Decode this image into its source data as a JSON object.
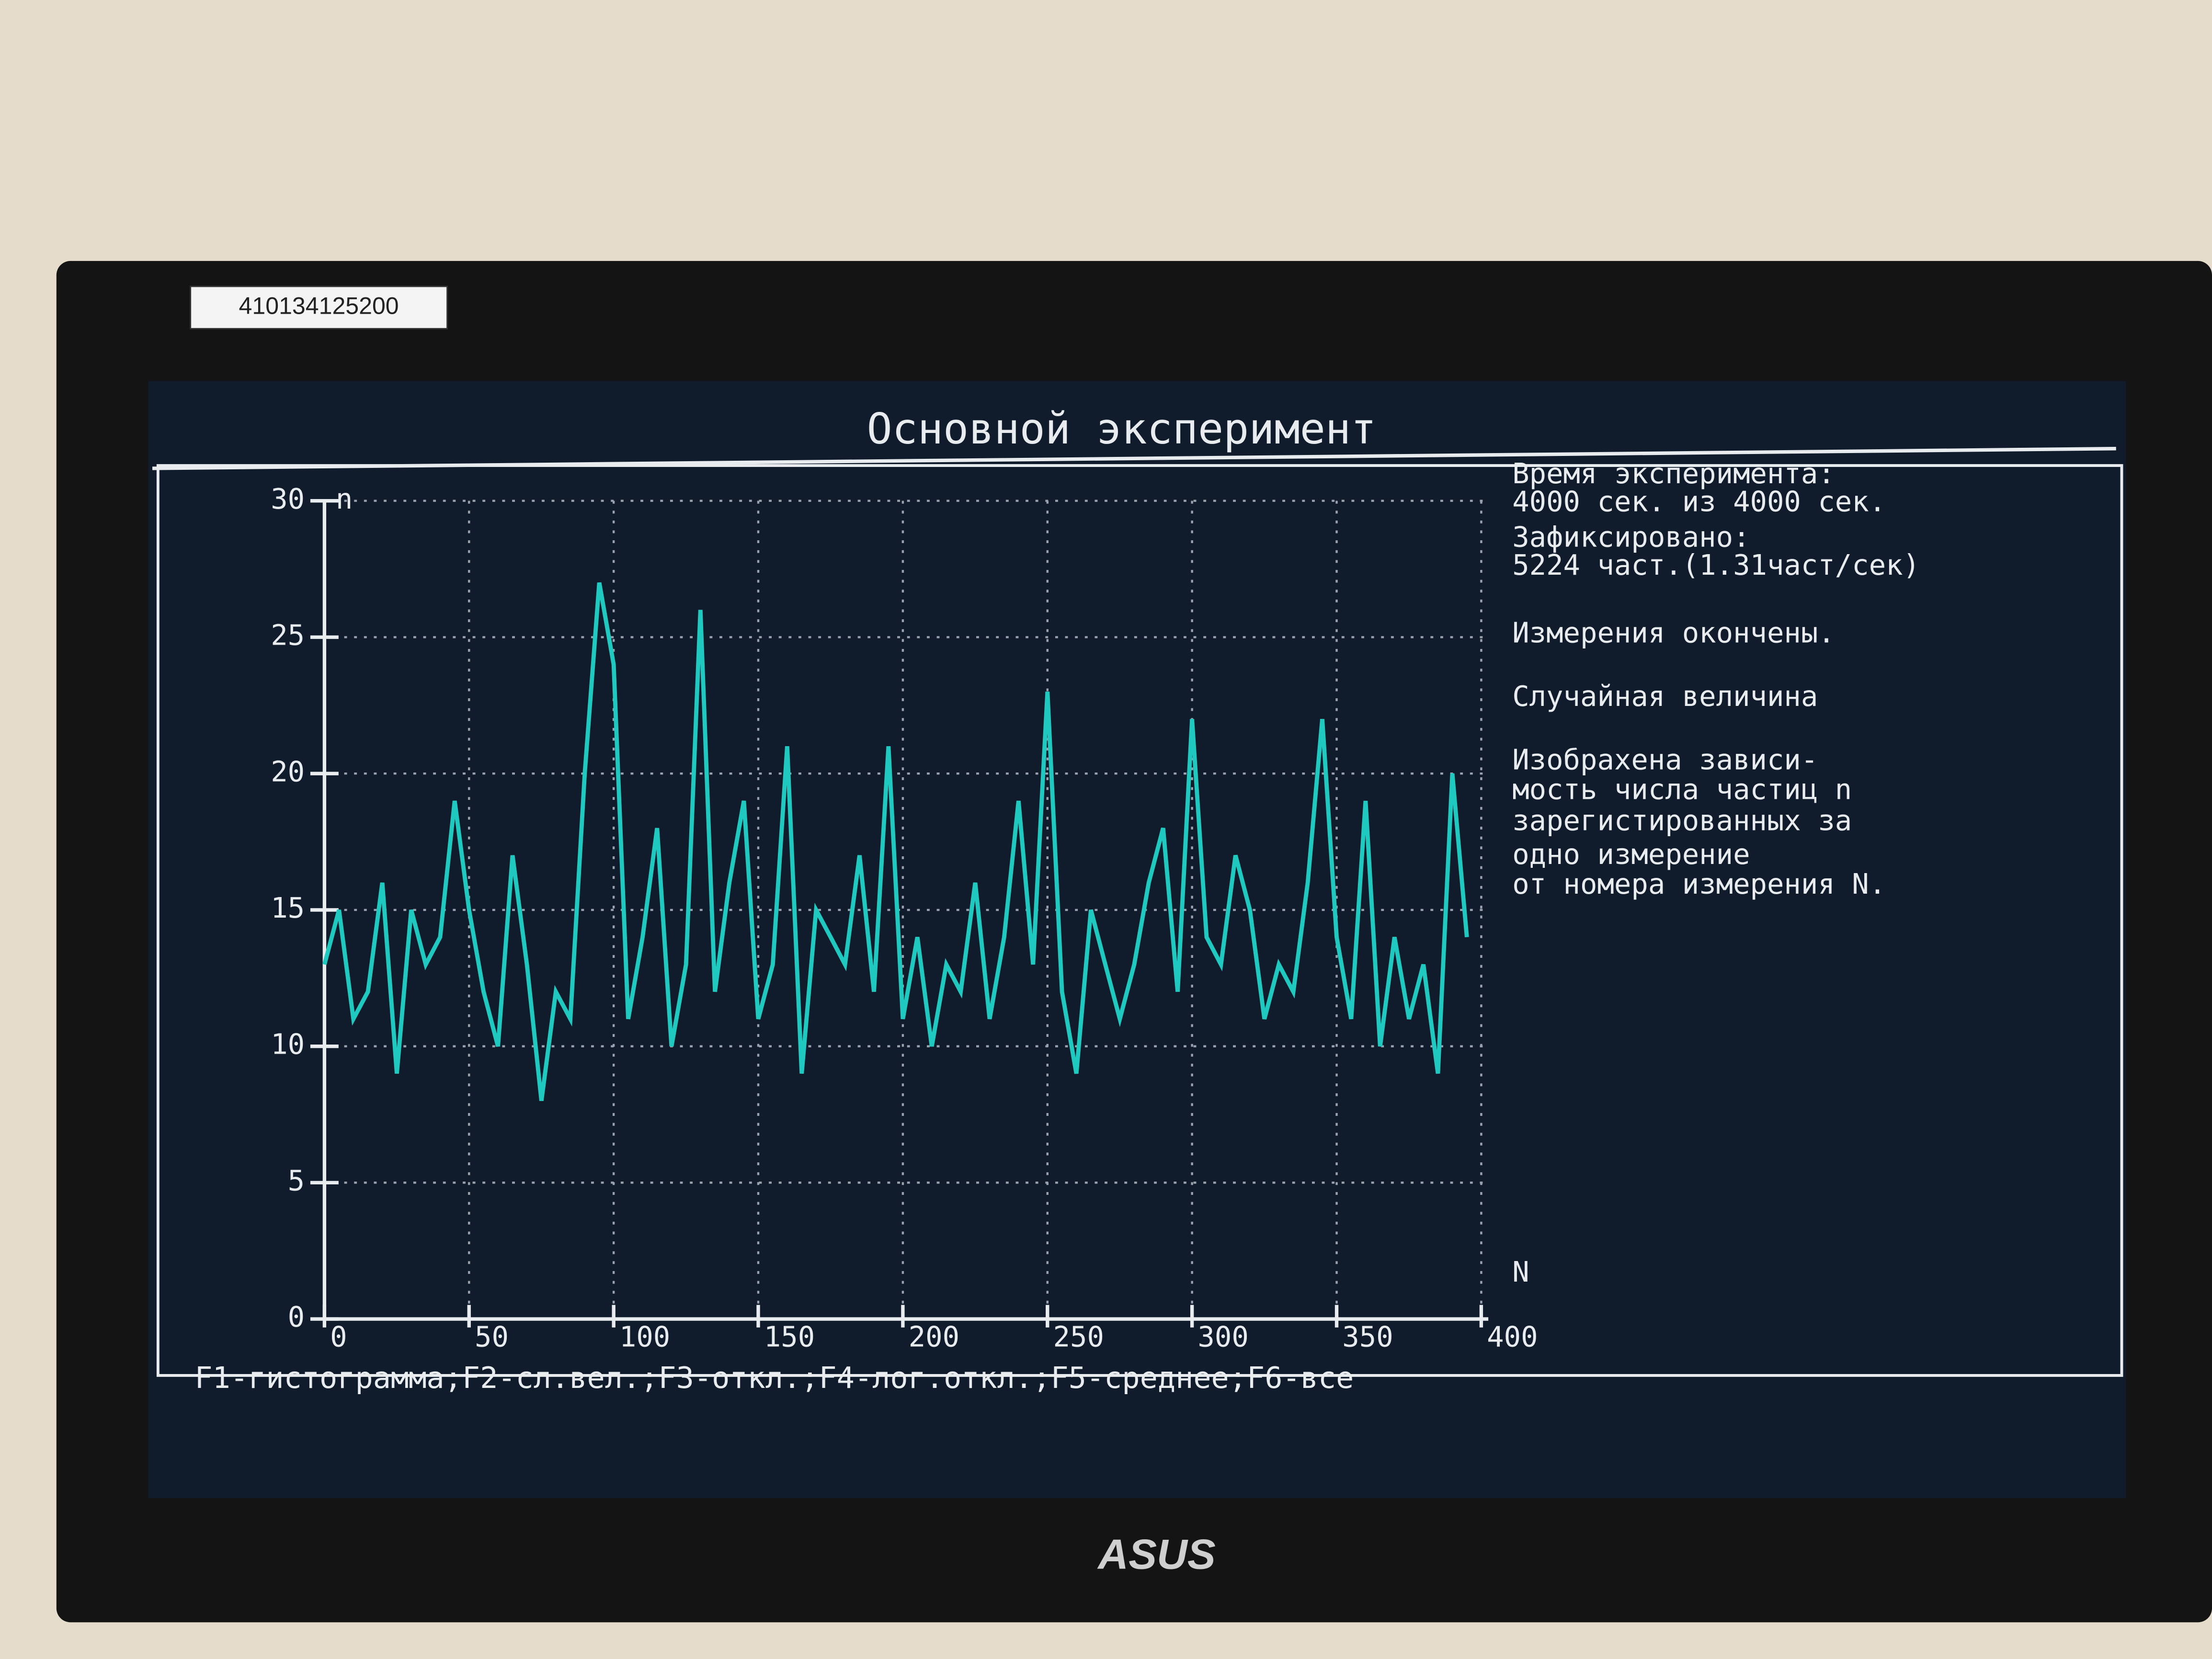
{
  "chart_data": {
    "type": "line",
    "title": "Основной эксперимент",
    "x_label": "N",
    "y_label": "n",
    "x": [
      0,
      5,
      10,
      15,
      20,
      25,
      30,
      35,
      40,
      45,
      50,
      55,
      60,
      65,
      70,
      75,
      80,
      85,
      90,
      95,
      100,
      105,
      110,
      115,
      120,
      125,
      130,
      135,
      140,
      145,
      150,
      155,
      160,
      165,
      170,
      175,
      180,
      185,
      190,
      195,
      200,
      205,
      210,
      215,
      220,
      225,
      230,
      235,
      240,
      245,
      250,
      255,
      260,
      265,
      270,
      275,
      280,
      285,
      290,
      295,
      300,
      305,
      310,
      315,
      320,
      325,
      330,
      335,
      340,
      345,
      350,
      355,
      360,
      365,
      370,
      375,
      380,
      385,
      390,
      395
    ],
    "series": [
      {
        "color": "#1fc9bf",
        "values": [
          13,
          15,
          11,
          12,
          16,
          9,
          15,
          13,
          14,
          19,
          15,
          12,
          10,
          17,
          13,
          8,
          12,
          11,
          20,
          27,
          24,
          11,
          14,
          18,
          10,
          13,
          26,
          12,
          16,
          19,
          11,
          13,
          21,
          9,
          15,
          14,
          13,
          17,
          12,
          21,
          11,
          14,
          10,
          13,
          12,
          16,
          11,
          14,
          19,
          13,
          23,
          12,
          9,
          15,
          13,
          11,
          13,
          16,
          18,
          12,
          22,
          14,
          13,
          17,
          15,
          11,
          13,
          12,
          16,
          22,
          14,
          11,
          19,
          10,
          14,
          11,
          13,
          9,
          20,
          14
        ]
      }
    ],
    "xlim": [
      0,
      400
    ],
    "xticks": [
      0,
      50,
      100,
      150,
      200,
      250,
      300,
      350,
      400
    ],
    "ylim": [
      0,
      30
    ],
    "yticks": [
      0,
      5,
      10,
      15,
      20,
      25,
      30
    ],
    "grid": true,
    "annotations": [
      "Время эксперимента:",
      "4000 сек. из 4000 сек.",
      "Зафиксировано:",
      "5224 част.(1.31част/сек)",
      "Измерения окончены.",
      "Случайная величина",
      "Изобрахена зависи-",
      "мость числа частиц n",
      "зарегистированных за",
      "одно измерение",
      "от номера измерения N."
    ],
    "footer": "F1-гистограмма;F2-сл.вел.;F3-откл.;F4-лог.откл.;F5-среднее;F6-все"
  },
  "sticker": "410134125200",
  "brand": "ASUS"
}
